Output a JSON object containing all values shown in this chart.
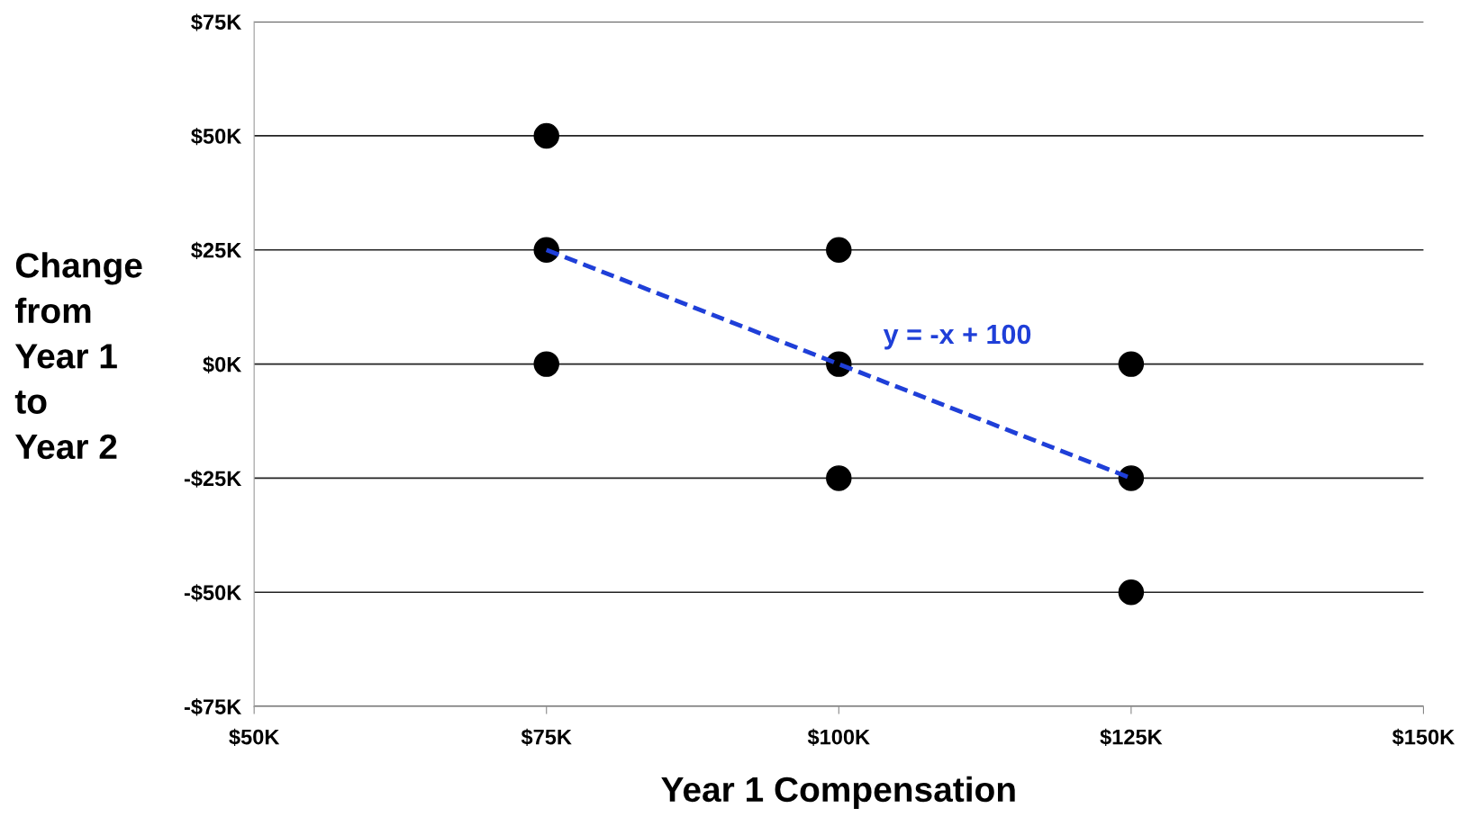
{
  "chart_data": {
    "type": "scatter",
    "xlabel": "Year 1 Compensation",
    "ylabel": "Change\nfrom\nYear 1\nto\nYear 2",
    "series": [
      {
        "color": "#000000",
        "x": [
          75,
          75,
          75,
          100,
          100,
          100,
          125,
          125,
          125
        ],
        "values": [
          50,
          25,
          0,
          25,
          0,
          -25,
          0,
          -25,
          -50
        ],
        "marker": "circle"
      },
      {
        "type": "line",
        "color": "#1f3fd8",
        "x": [
          75,
          125
        ],
        "values": [
          25,
          -25
        ],
        "line_style": "dashed",
        "marker": "none"
      }
    ],
    "annotations": [
      "y = -x + 100"
    ],
    "xlim": [
      50,
      150
    ],
    "xticks": [
      {
        "value": 50,
        "label": "$50K"
      },
      {
        "value": 75,
        "label": "$75K"
      },
      {
        "value": 100,
        "label": "$100K"
      },
      {
        "value": 125,
        "label": "$125K"
      },
      {
        "value": 150,
        "label": "$150K"
      }
    ],
    "ylim": [
      -75,
      75
    ],
    "yticks": [
      {
        "value": -75,
        "label": "-$75K"
      },
      {
        "value": -50,
        "label": "-$50K"
      },
      {
        "value": -25,
        "label": "-$25K"
      },
      {
        "value": 0,
        "label": "$0K"
      },
      {
        "value": 25,
        "label": "$25K"
      },
      {
        "value": 50,
        "label": "$50K"
      },
      {
        "value": 75,
        "label": "$75K"
      }
    ],
    "grid": "y",
    "legend": false
  }
}
